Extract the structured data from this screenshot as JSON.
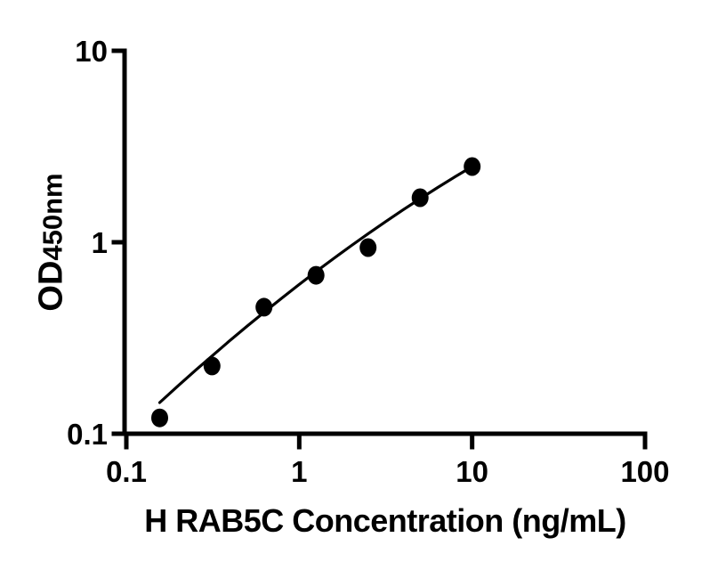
{
  "chart_data": {
    "type": "scatter",
    "title": "",
    "xlabel": "H RAB5C Concentration (ng/mL)",
    "ylabel": "OD450nm",
    "ylabel_main": "OD",
    "ylabel_sub": "450nm",
    "x_scale": "log",
    "y_scale": "log",
    "xlim": [
      0.1,
      100
    ],
    "ylim": [
      0.1,
      10
    ],
    "grid": false,
    "legend": "none",
    "x_ticks": [
      {
        "value": 0.1,
        "label": "0.1"
      },
      {
        "value": 1,
        "label": "1"
      },
      {
        "value": 10,
        "label": "10"
      },
      {
        "value": 100,
        "label": "100"
      }
    ],
    "y_ticks": [
      {
        "value": 0.1,
        "label": "0.1"
      },
      {
        "value": 1,
        "label": "1"
      },
      {
        "value": 10,
        "label": "10"
      }
    ],
    "series": [
      {
        "name": "standard-points",
        "marker": "filled-circle",
        "x": [
          0.156,
          0.313,
          0.625,
          1.25,
          2.5,
          5,
          10
        ],
        "y": [
          0.121,
          0.226,
          0.458,
          0.672,
          0.938,
          1.708,
          2.485
        ]
      }
    ],
    "fit_curve": {
      "name": "four-parameter-fit",
      "x": [
        0.156,
        0.1995,
        0.2512,
        0.3162,
        0.3981,
        0.5012,
        0.631,
        0.7943,
        1.0,
        1.2589,
        1.5849,
        1.9953,
        2.5119,
        3.1623,
        3.9811,
        5.0119,
        6.3096,
        7.9433,
        10.0
      ],
      "y": [
        0.1455,
        0.1781,
        0.2144,
        0.257,
        0.3071,
        0.3656,
        0.4332,
        0.5117,
        0.602,
        0.7058,
        0.8239,
        0.9585,
        1.1108,
        1.2823,
        1.4748,
        1.6904,
        1.9294,
        2.1938,
        2.4859
      ]
    },
    "colors": {
      "foreground": "#000000",
      "background": "#ffffff"
    }
  }
}
